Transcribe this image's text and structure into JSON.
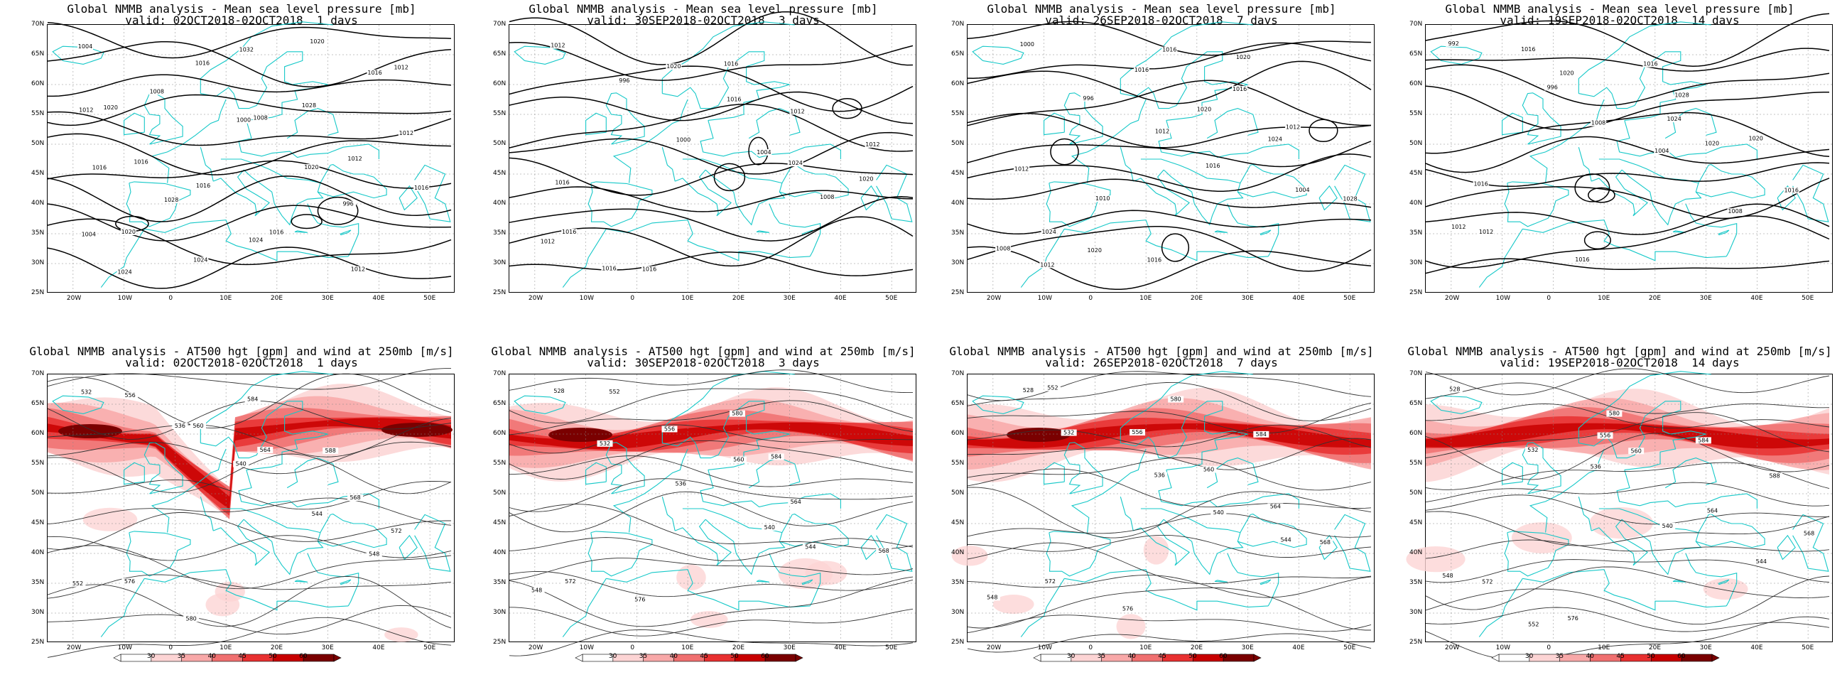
{
  "panels": [
    {
      "id": "mslp-1d",
      "type": "mslp",
      "title": "Global NMMB analysis - Mean sea level pressure [mb]",
      "subtitle": "valid: 02OCT2018-02OCT2018  1 days",
      "contour_labels": [
        "1004",
        "1008",
        "1000",
        "1020",
        "996",
        "1004",
        "1024",
        "1016",
        "1008",
        "1012",
        "1016",
        "1020",
        "1024",
        "1032",
        "1028",
        "1012",
        "1016",
        "1028",
        "1024",
        "1020",
        "1016",
        "1012",
        "1016",
        "1016",
        "1016",
        "1012",
        "1012",
        "1020"
      ]
    },
    {
      "id": "mslp-3d",
      "type": "mslp",
      "title": "Global NMMB analysis - Mean sea level pressure [mb]",
      "subtitle": "valid: 30SEP2018-02OCT2018  3 days",
      "contour_labels": [
        "1012",
        "996",
        "1000",
        "1004",
        "1008",
        "1012",
        "1016",
        "1020",
        "1016",
        "1024",
        "1020",
        "1016",
        "1016",
        "1016",
        "1012",
        "1012",
        "1016"
      ]
    },
    {
      "id": "mslp-7d",
      "type": "mslp",
      "title": "Global NMMB analysis - Mean sea level pressure [mb]",
      "subtitle": "valid: 26SEP2018-02OCT2018  7 days",
      "contour_labels": [
        "1000",
        "996",
        "1012",
        "1016",
        "1004",
        "1008",
        "1012",
        "1016",
        "1020",
        "1024",
        "1028",
        "1024",
        "1020",
        "1016",
        "1016",
        "1012",
        "1012",
        "1010",
        "1016",
        "1020"
      ]
    },
    {
      "id": "mslp-14d",
      "type": "mslp",
      "title": "Global NMMB analysis - Mean sea level pressure [mb]",
      "subtitle": "valid: 19SEP2018-02OCT2018  14 days",
      "contour_labels": [
        "992",
        "996",
        "1008",
        "1004",
        "1008",
        "1012",
        "1016",
        "1020",
        "1024",
        "1020",
        "1016",
        "1012",
        "1016",
        "1016",
        "1028",
        "1020",
        "1016"
      ]
    },
    {
      "id": "z500-1d",
      "type": "z500",
      "title": "Global NMMB analysis - AT500 hgt [gpm] and wind at 250mb [m/s]",
      "subtitle": "valid: 02OCT2018-02OCT2018  1 days",
      "contour_labels": [
        "532",
        "536",
        "540",
        "544",
        "548",
        "552",
        "556",
        "560",
        "564",
        "568",
        "572",
        "576",
        "580",
        "584",
        "588"
      ]
    },
    {
      "id": "z500-3d",
      "type": "z500",
      "title": "Global NMMB analysis - AT500 hgt [gpm] and wind at 250mb [m/s]",
      "subtitle": "valid: 30SEP2018-02OCT2018  3 days",
      "contour_labels": [
        "528",
        "532",
        "536",
        "540",
        "544",
        "548",
        "552",
        "556",
        "560",
        "564",
        "568",
        "572",
        "576",
        "580",
        "584"
      ]
    },
    {
      "id": "z500-7d",
      "type": "z500",
      "title": "Global NMMB analysis - AT500 hgt [gpm] and wind at 250mb [m/s]",
      "subtitle": "valid: 26SEP2018-02OCT2018  7 days",
      "contour_labels": [
        "528",
        "532",
        "536",
        "540",
        "544",
        "548",
        "552",
        "556",
        "560",
        "564",
        "568",
        "572",
        "576",
        "580",
        "584"
      ]
    },
    {
      "id": "z500-14d",
      "type": "z500",
      "title": "Global NMMB analysis - AT500 hgt [gpm] and wind at 250mb [m/s]",
      "subtitle": "valid: 19SEP2018-02OCT2018  14 days",
      "contour_labels": [
        "528",
        "532",
        "536",
        "540",
        "544",
        "548",
        "552",
        "556",
        "560",
        "564",
        "568",
        "572",
        "576",
        "580",
        "584",
        "588"
      ]
    }
  ],
  "axes": {
    "lat_labels": [
      "70N",
      "65N",
      "60N",
      "55N",
      "50N",
      "45N",
      "40N",
      "35N",
      "30N",
      "25N"
    ],
    "lon_labels": [
      "20W",
      "10W",
      "0",
      "10E",
      "20E",
      "30E",
      "40E",
      "50E"
    ]
  },
  "colorbar": {
    "ticks": [
      "30",
      "35",
      "40",
      "45",
      "50",
      "60"
    ],
    "colors": [
      "#ffffff",
      "#fcd4d4",
      "#f8a8a8",
      "#f07070",
      "#e83030",
      "#c80000",
      "#7a0000"
    ]
  },
  "chart_data": [
    {
      "type": "heatmap",
      "name": "mslp",
      "xlabel": "",
      "ylabel": "",
      "xlim": [
        -25,
        55
      ],
      "ylim": [
        25,
        70
      ],
      "x_ticks": [
        "20W",
        "10W",
        "0",
        "10E",
        "20E",
        "30E",
        "40E",
        "50E"
      ],
      "y_ticks": [
        "25N",
        "30N",
        "35N",
        "40N",
        "45N",
        "50N",
        "55N",
        "60N",
        "65N",
        "70N"
      ]
    },
    {
      "type": "heatmap",
      "name": "z500",
      "xlabel": "",
      "ylabel": "",
      "xlim": [
        -25,
        55
      ],
      "ylim": [
        25,
        70
      ],
      "colorbar_ticks": [
        30,
        35,
        40,
        45,
        50,
        60
      ]
    }
  ]
}
